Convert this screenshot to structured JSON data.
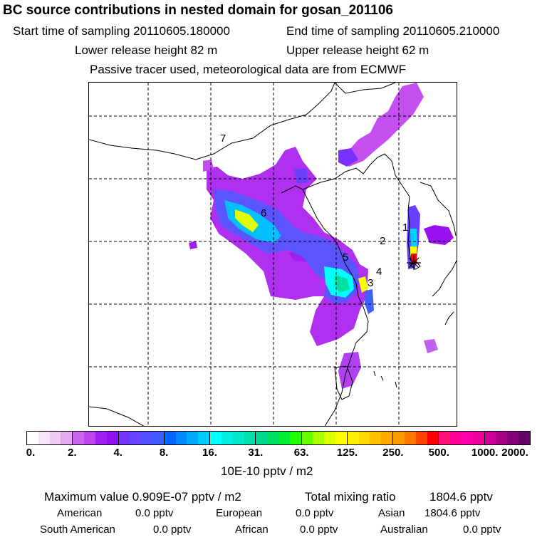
{
  "title": "BC  source contributions in nested domain for gosan_201106",
  "header": {
    "start_label": "Start time of sampling 20110605.180000",
    "end_label": "End time of sampling 20110605.210000",
    "lower_label": "Lower release height   82 m",
    "upper_label": "Upper release height   62 m",
    "tracer_note": "Passive tracer used, meteorological data are from ECMWF"
  },
  "map": {
    "region_labels": [
      "1",
      "2",
      "3",
      "4",
      "5",
      "6",
      "7"
    ],
    "receptor_marker": "star-marker"
  },
  "scale": {
    "tick_labels": [
      "0.",
      "2.",
      "4.",
      "8.",
      "16.",
      "31.",
      "63.",
      "125.",
      "250.",
      "500.",
      "1000.",
      "2000."
    ],
    "units": "10E-10 pptv / m2",
    "colors": [
      [
        "#ffffff",
        "#f7e4f7",
        "#f0c8f3",
        "#e8a8f0"
      ],
      [
        "#cc66ee",
        "#bb44ee",
        "#a020f0",
        "#9010f0"
      ],
      [
        "#7733ff",
        "#6644ff",
        "#5050ff",
        "#3f5cff"
      ],
      [
        "#0066ff",
        "#0088ff",
        "#00a8ff",
        "#00ccff"
      ],
      [
        "#00ffff",
        "#00f0e0",
        "#00e8c8",
        "#00e0a8"
      ],
      [
        "#00d890",
        "#00e060",
        "#00f030",
        "#20ff00"
      ],
      [
        "#66ff00",
        "#aaff00",
        "#ddff00",
        "#ffff00"
      ],
      [
        "#ffee00",
        "#ffd800",
        "#ffc000",
        "#ffa800"
      ],
      [
        "#ff9900",
        "#ff7700",
        "#ff4400",
        "#ff0000"
      ],
      [
        "#ff1177",
        "#ff0099",
        "#ff00aa",
        "#ee0099"
      ],
      [
        "#cc0099",
        "#aa0088",
        "#880077",
        "#660066"
      ]
    ]
  },
  "stats": {
    "max_label": "Maximum value  0.909E-07 pptv / m2",
    "total_label": "Total mixing ratio",
    "total_value": "1804.6 pptv",
    "american": "American",
    "american_value": "0.0 pptv",
    "european": "European",
    "european_value": "0.0 pptv",
    "asian": "Asian",
    "asian_value": "1804.6 pptv",
    "south_american": "South American",
    "south_american_value": "0.0 pptv",
    "african": "African",
    "african_value": "0.0 pptv",
    "australian": "Australian",
    "australian_value": "0.0 pptv"
  }
}
